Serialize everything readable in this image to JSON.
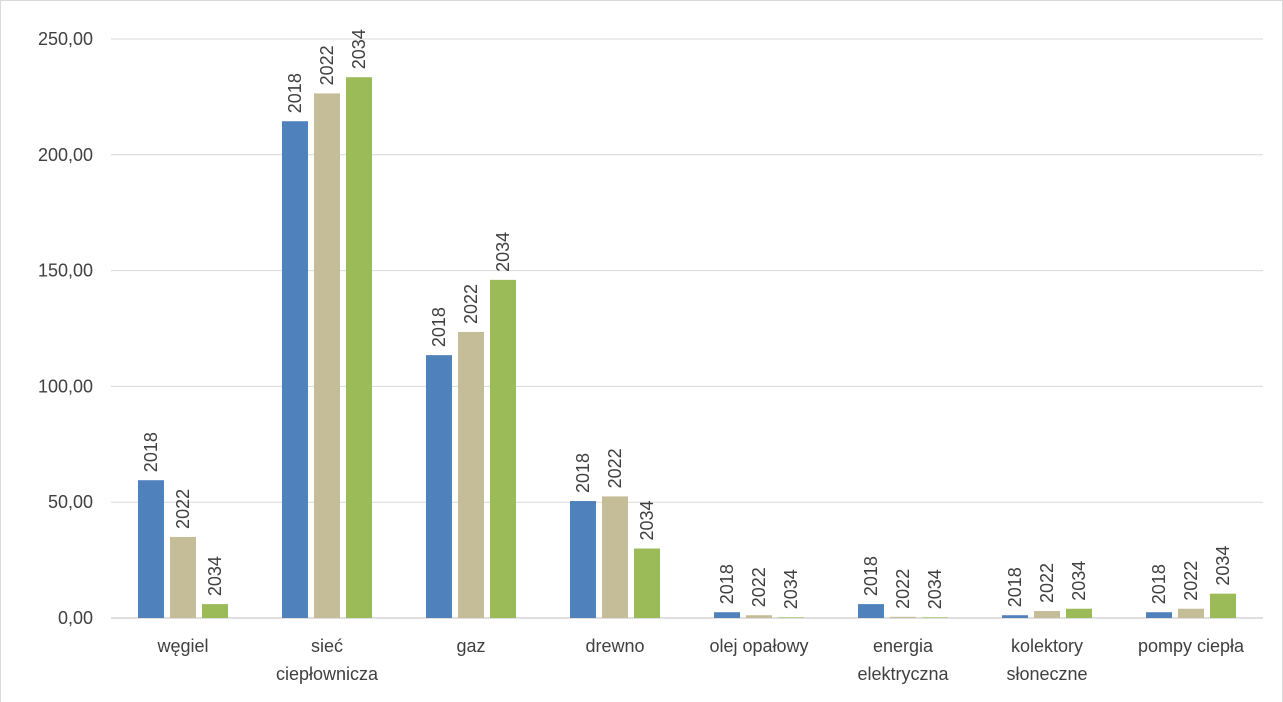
{
  "chart_data": {
    "type": "bar",
    "categories": [
      [
        "węgiel"
      ],
      [
        "sieć",
        "ciepłownicza"
      ],
      [
        "gaz"
      ],
      [
        "drewno"
      ],
      [
        "olej opałowy"
      ],
      [
        "energia",
        "elektryczna"
      ],
      [
        "kolektory",
        "słoneczne"
      ],
      [
        "pompy ciepła"
      ]
    ],
    "series": [
      {
        "data_label": "2018",
        "color": "#4f81bd",
        "values": [
          59.5,
          214.5,
          113.5,
          50.5,
          2.5,
          6.0,
          1.2,
          2.5
        ]
      },
      {
        "data_label": "2022",
        "color": "#c4bd97",
        "values": [
          35.0,
          226.5,
          123.5,
          52.5,
          1.2,
          0.5,
          3.0,
          4.0
        ]
      },
      {
        "data_label": "2034",
        "color": "#9bbb59",
        "values": [
          6.0,
          233.5,
          146.0,
          30.0,
          0.3,
          0.3,
          4.0,
          10.5
        ]
      }
    ],
    "ylim": [
      0,
      250
    ],
    "yticks": [
      "0,00",
      "50,00",
      "100,00",
      "150,00",
      "200,00",
      "250,00"
    ],
    "ytick_values": [
      0,
      50,
      100,
      150,
      200,
      250
    ],
    "grid": true,
    "title": "",
    "xlabel": "",
    "ylabel": ""
  }
}
